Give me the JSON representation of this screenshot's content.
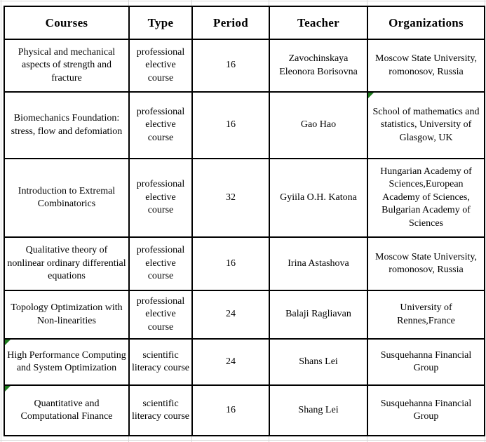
{
  "page": {
    "background": "#ffffff",
    "border_color": "#000000",
    "gridline_color": "#d7d7d7"
  },
  "table": {
    "columns": [
      {
        "id": "course",
        "label": "Courses"
      },
      {
        "id": "type",
        "label": "Type"
      },
      {
        "id": "period",
        "label": "Period"
      },
      {
        "id": "teacher",
        "label": "Teacher"
      },
      {
        "id": "organization",
        "label": "Organizations"
      }
    ],
    "error_marker_color": "#1e7b1e",
    "rows": [
      {
        "course": "Physical and mechanical aspects of strength and fracture",
        "type": "professional elective course",
        "period": "16",
        "teacher": "Zavochinskaya Eleonora Borisovna",
        "organization": "Moscow State University, romonosov, Russia",
        "flags": {}
      },
      {
        "course": "Biomechanics Foundation: stress, flow and defomiation",
        "type": "professional elective course",
        "period": "16",
        "teacher": "Gao Hao",
        "organization": "School of mathematics and statistics, University of Glasgow, UK",
        "flags": {
          "organization": true
        }
      },
      {
        "course": "Introduction to Extremal Combinatorics",
        "type": "professional elective course",
        "period": "32",
        "teacher": "Gyiila O.H. Katona",
        "organization": "Hungarian Academy of Sciences,European Academy of Sciences, Bulgarian Academy of Sciences",
        "flags": {}
      },
      {
        "course": "Qualitative theory of nonlinear ordinary differential equations",
        "type": "professional elective course",
        "period": "16",
        "teacher": "Irina Astashova",
        "organization": "Moscow State University, romonosov, Russia",
        "flags": {}
      },
      {
        "course": "Topology Optimization with Non-linearities",
        "type": "professional elective course",
        "period": "24",
        "teacher": "Balaji Ragliavan",
        "organization": "University of Rennes,France",
        "flags": {}
      },
      {
        "course": "High Performance Computing and System Optimization",
        "type": "scientific literacy course",
        "period": "24",
        "teacher": "Shans Lei",
        "organization": "Susquehanna Financial Group",
        "flags": {
          "course": true
        }
      },
      {
        "course": "Quantitative and Computational Finance",
        "type": "scientific literacy course",
        "period": "16",
        "teacher": "Shang Lei",
        "organization": "Susquehanna Financial Group",
        "flags": {
          "course": true
        }
      }
    ]
  }
}
